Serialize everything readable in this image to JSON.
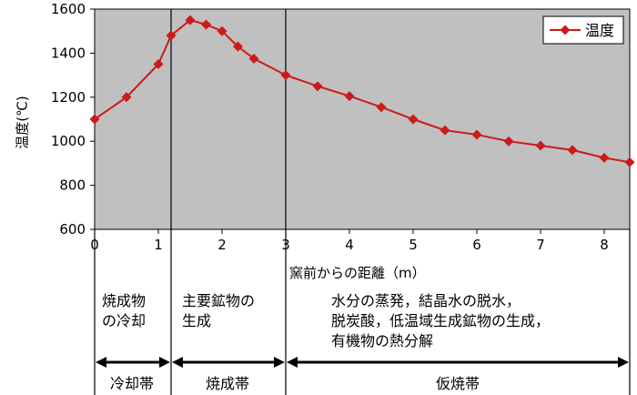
{
  "chart_data": {
    "type": "line",
    "title": "",
    "xlabel": "窯前からの距離（m）",
    "ylabel": "温度(℃)",
    "xlim": [
      0,
      8.4
    ],
    "ylim": [
      600,
      1600
    ],
    "xticks": [
      "0",
      "1",
      "2",
      "3",
      "4",
      "5",
      "6",
      "7",
      "8"
    ],
    "yticks": [
      "600",
      "800",
      "1000",
      "1200",
      "1400",
      "1600"
    ],
    "grid": false,
    "legend": "top-right",
    "series": [
      {
        "name": "温度",
        "color": "#cc1a1a",
        "x": [
          0,
          0.5,
          1.0,
          1.2,
          1.5,
          1.75,
          2.0,
          2.25,
          2.5,
          3.0,
          3.5,
          4.0,
          4.5,
          5.0,
          5.5,
          6.0,
          6.5,
          7.0,
          7.5,
          8.0,
          8.4
        ],
        "y": [
          1100,
          1200,
          1350,
          1480,
          1550,
          1530,
          1500,
          1430,
          1375,
          1300,
          1250,
          1205,
          1155,
          1100,
          1050,
          1030,
          1000,
          980,
          960,
          925,
          905
        ]
      }
    ],
    "dividers_x": [
      1.2,
      3.0
    ]
  },
  "zones": [
    {
      "description": [
        "焼成物",
        "の冷却"
      ],
      "name": "冷却帯"
    },
    {
      "description": [
        "主要鉱物の",
        "生成"
      ],
      "name": "焼成帯"
    },
    {
      "description": [
        "水分の蒸発，結晶水の脱水，",
        "脱炭酸，低温域生成鉱物の生成，",
        "有機物の熱分解"
      ],
      "name": "仮焼帯"
    }
  ],
  "colors": {
    "plot_background": "#c0c0c0",
    "line": "#cc1a1a",
    "axis": "#000000"
  }
}
